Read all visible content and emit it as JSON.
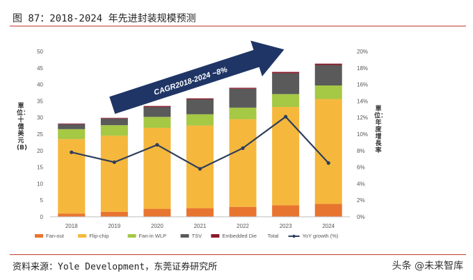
{
  "figure": {
    "title": "图 87：2018-2024 年先进封装规模预测",
    "source": "资料来源：Yole Development，东莞证券研究所",
    "watermark": "头条 @未来智库"
  },
  "chart_data": {
    "type": "bar",
    "stacked": true,
    "categories": [
      "2018",
      "2019",
      "2020",
      "2021",
      "2022",
      "2023",
      "2024"
    ],
    "series": [
      {
        "name": "Fan-out",
        "color": "#e8752f",
        "values": [
          1.0,
          1.5,
          2.4,
          2.6,
          3.0,
          3.5,
          3.9
        ]
      },
      {
        "name": "Flip-chip",
        "color": "#f5b83d",
        "values": [
          22.5,
          23.0,
          24.5,
          25.0,
          26.5,
          29.7,
          31.7
        ]
      },
      {
        "name": "Fan-in WLP",
        "color": "#a5c845",
        "values": [
          3.0,
          3.2,
          3.3,
          3.4,
          3.5,
          3.9,
          4.1
        ]
      },
      {
        "name": "TSV",
        "color": "#5a5a5a",
        "values": [
          1.5,
          2.0,
          3.0,
          4.5,
          5.7,
          6.3,
          6.2
        ]
      },
      {
        "name": "Embedded Die",
        "color": "#8b1a2b",
        "values": [
          0.2,
          0.2,
          0.3,
          0.3,
          0.3,
          0.4,
          0.4
        ]
      }
    ],
    "totals_legend_label": "Total",
    "line": {
      "name": "YoY growth (%)",
      "color": "#2e3e5c",
      "values": [
        7.8,
        6.6,
        8.7,
        5.8,
        8.3,
        12.1,
        6.5
      ]
    },
    "y_left": {
      "min": 0,
      "max": 50,
      "step": 5,
      "label": "單位：十億美元(B)"
    },
    "y_right": {
      "min": 0,
      "max": 20,
      "step": 2,
      "label": "單位：年度增長率",
      "suffix": "%"
    },
    "annotation": {
      "text": "CAGR2018-2024 ~8%",
      "arrow_color": "#1f3566"
    },
    "grid": false,
    "legend_position": "bottom"
  }
}
